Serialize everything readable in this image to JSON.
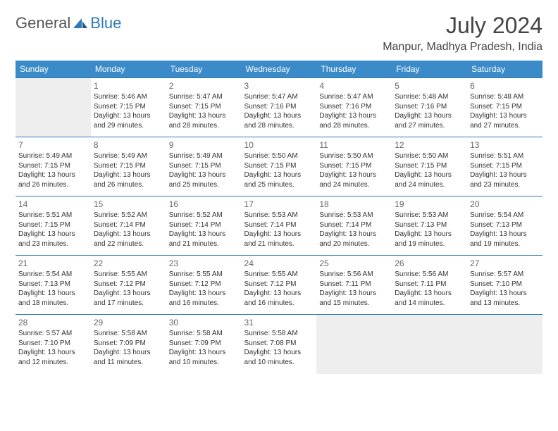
{
  "logo": {
    "general": "General",
    "blue": "Blue"
  },
  "title": "July 2024",
  "location": "Manpur, Madhya Pradesh, India",
  "colors": {
    "header_bg": "#3b8bc9",
    "header_text": "#ffffff",
    "border": "#2e79b8",
    "empty_bg": "#eeeeee",
    "text": "#333333",
    "daynum": "#666666",
    "logo_blue": "#2e79b8",
    "logo_gray": "#555555"
  },
  "weekdays": [
    "Sunday",
    "Monday",
    "Tuesday",
    "Wednesday",
    "Thursday",
    "Friday",
    "Saturday"
  ],
  "weeks": [
    [
      null,
      {
        "n": "1",
        "sr": "Sunrise: 5:46 AM",
        "ss": "Sunset: 7:15 PM",
        "d1": "Daylight: 13 hours",
        "d2": "and 29 minutes."
      },
      {
        "n": "2",
        "sr": "Sunrise: 5:47 AM",
        "ss": "Sunset: 7:15 PM",
        "d1": "Daylight: 13 hours",
        "d2": "and 28 minutes."
      },
      {
        "n": "3",
        "sr": "Sunrise: 5:47 AM",
        "ss": "Sunset: 7:16 PM",
        "d1": "Daylight: 13 hours",
        "d2": "and 28 minutes."
      },
      {
        "n": "4",
        "sr": "Sunrise: 5:47 AM",
        "ss": "Sunset: 7:16 PM",
        "d1": "Daylight: 13 hours",
        "d2": "and 28 minutes."
      },
      {
        "n": "5",
        "sr": "Sunrise: 5:48 AM",
        "ss": "Sunset: 7:16 PM",
        "d1": "Daylight: 13 hours",
        "d2": "and 27 minutes."
      },
      {
        "n": "6",
        "sr": "Sunrise: 5:48 AM",
        "ss": "Sunset: 7:15 PM",
        "d1": "Daylight: 13 hours",
        "d2": "and 27 minutes."
      }
    ],
    [
      {
        "n": "7",
        "sr": "Sunrise: 5:49 AM",
        "ss": "Sunset: 7:15 PM",
        "d1": "Daylight: 13 hours",
        "d2": "and 26 minutes."
      },
      {
        "n": "8",
        "sr": "Sunrise: 5:49 AM",
        "ss": "Sunset: 7:15 PM",
        "d1": "Daylight: 13 hours",
        "d2": "and 26 minutes."
      },
      {
        "n": "9",
        "sr": "Sunrise: 5:49 AM",
        "ss": "Sunset: 7:15 PM",
        "d1": "Daylight: 13 hours",
        "d2": "and 25 minutes."
      },
      {
        "n": "10",
        "sr": "Sunrise: 5:50 AM",
        "ss": "Sunset: 7:15 PM",
        "d1": "Daylight: 13 hours",
        "d2": "and 25 minutes."
      },
      {
        "n": "11",
        "sr": "Sunrise: 5:50 AM",
        "ss": "Sunset: 7:15 PM",
        "d1": "Daylight: 13 hours",
        "d2": "and 24 minutes."
      },
      {
        "n": "12",
        "sr": "Sunrise: 5:50 AM",
        "ss": "Sunset: 7:15 PM",
        "d1": "Daylight: 13 hours",
        "d2": "and 24 minutes."
      },
      {
        "n": "13",
        "sr": "Sunrise: 5:51 AM",
        "ss": "Sunset: 7:15 PM",
        "d1": "Daylight: 13 hours",
        "d2": "and 23 minutes."
      }
    ],
    [
      {
        "n": "14",
        "sr": "Sunrise: 5:51 AM",
        "ss": "Sunset: 7:15 PM",
        "d1": "Daylight: 13 hours",
        "d2": "and 23 minutes."
      },
      {
        "n": "15",
        "sr": "Sunrise: 5:52 AM",
        "ss": "Sunset: 7:14 PM",
        "d1": "Daylight: 13 hours",
        "d2": "and 22 minutes."
      },
      {
        "n": "16",
        "sr": "Sunrise: 5:52 AM",
        "ss": "Sunset: 7:14 PM",
        "d1": "Daylight: 13 hours",
        "d2": "and 21 minutes."
      },
      {
        "n": "17",
        "sr": "Sunrise: 5:53 AM",
        "ss": "Sunset: 7:14 PM",
        "d1": "Daylight: 13 hours",
        "d2": "and 21 minutes."
      },
      {
        "n": "18",
        "sr": "Sunrise: 5:53 AM",
        "ss": "Sunset: 7:14 PM",
        "d1": "Daylight: 13 hours",
        "d2": "and 20 minutes."
      },
      {
        "n": "19",
        "sr": "Sunrise: 5:53 AM",
        "ss": "Sunset: 7:13 PM",
        "d1": "Daylight: 13 hours",
        "d2": "and 19 minutes."
      },
      {
        "n": "20",
        "sr": "Sunrise: 5:54 AM",
        "ss": "Sunset: 7:13 PM",
        "d1": "Daylight: 13 hours",
        "d2": "and 19 minutes."
      }
    ],
    [
      {
        "n": "21",
        "sr": "Sunrise: 5:54 AM",
        "ss": "Sunset: 7:13 PM",
        "d1": "Daylight: 13 hours",
        "d2": "and 18 minutes."
      },
      {
        "n": "22",
        "sr": "Sunrise: 5:55 AM",
        "ss": "Sunset: 7:12 PM",
        "d1": "Daylight: 13 hours",
        "d2": "and 17 minutes."
      },
      {
        "n": "23",
        "sr": "Sunrise: 5:55 AM",
        "ss": "Sunset: 7:12 PM",
        "d1": "Daylight: 13 hours",
        "d2": "and 16 minutes."
      },
      {
        "n": "24",
        "sr": "Sunrise: 5:55 AM",
        "ss": "Sunset: 7:12 PM",
        "d1": "Daylight: 13 hours",
        "d2": "and 16 minutes."
      },
      {
        "n": "25",
        "sr": "Sunrise: 5:56 AM",
        "ss": "Sunset: 7:11 PM",
        "d1": "Daylight: 13 hours",
        "d2": "and 15 minutes."
      },
      {
        "n": "26",
        "sr": "Sunrise: 5:56 AM",
        "ss": "Sunset: 7:11 PM",
        "d1": "Daylight: 13 hours",
        "d2": "and 14 minutes."
      },
      {
        "n": "27",
        "sr": "Sunrise: 5:57 AM",
        "ss": "Sunset: 7:10 PM",
        "d1": "Daylight: 13 hours",
        "d2": "and 13 minutes."
      }
    ],
    [
      {
        "n": "28",
        "sr": "Sunrise: 5:57 AM",
        "ss": "Sunset: 7:10 PM",
        "d1": "Daylight: 13 hours",
        "d2": "and 12 minutes."
      },
      {
        "n": "29",
        "sr": "Sunrise: 5:58 AM",
        "ss": "Sunset: 7:09 PM",
        "d1": "Daylight: 13 hours",
        "d2": "and 11 minutes."
      },
      {
        "n": "30",
        "sr": "Sunrise: 5:58 AM",
        "ss": "Sunset: 7:09 PM",
        "d1": "Daylight: 13 hours",
        "d2": "and 10 minutes."
      },
      {
        "n": "31",
        "sr": "Sunrise: 5:58 AM",
        "ss": "Sunset: 7:08 PM",
        "d1": "Daylight: 13 hours",
        "d2": "and 10 minutes."
      },
      null,
      null,
      null
    ]
  ]
}
